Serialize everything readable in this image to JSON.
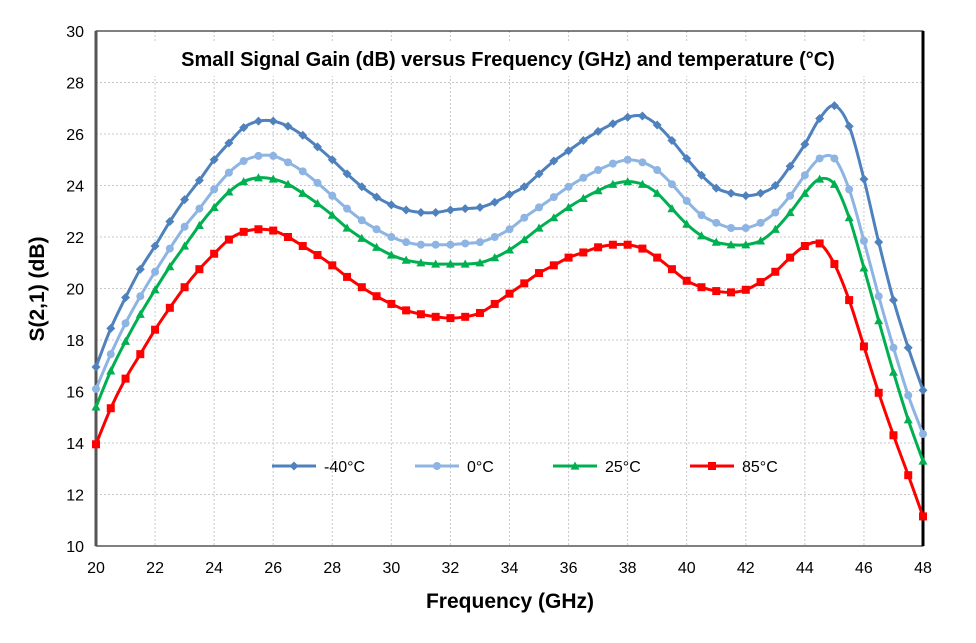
{
  "chart_data": {
    "type": "line",
    "title": "Small Signal Gain (dB) versus Frequency (GHz) and temperature (°C)",
    "xlabel": "Frequency (GHz)",
    "ylabel": "S(2,1) (dB)",
    "xlim": [
      20,
      48
    ],
    "ylim": [
      10,
      30
    ],
    "xticks": [
      20,
      22,
      24,
      26,
      28,
      30,
      32,
      34,
      36,
      38,
      40,
      42,
      44,
      46,
      48
    ],
    "yticks": [
      10,
      12,
      14,
      16,
      18,
      20,
      22,
      24,
      26,
      28,
      30
    ],
    "grid": true,
    "legend_position": "bottom-center",
    "x_start": 20,
    "x_step": 0.5,
    "series": [
      {
        "name": "-40°C",
        "color": "#4F81BD",
        "marker": "diamond",
        "values": [
          16.95,
          18.45,
          19.65,
          20.75,
          21.65,
          22.6,
          23.45,
          24.2,
          25.0,
          25.65,
          26.25,
          26.5,
          26.5,
          26.3,
          25.95,
          25.5,
          25.0,
          24.45,
          23.95,
          23.55,
          23.25,
          23.05,
          22.95,
          22.95,
          23.05,
          23.1,
          23.15,
          23.35,
          23.65,
          23.95,
          24.45,
          24.95,
          25.35,
          25.75,
          26.1,
          26.4,
          26.65,
          26.7,
          26.35,
          25.75,
          25.05,
          24.4,
          23.9,
          23.7,
          23.6,
          23.7,
          24.0,
          24.75,
          25.6,
          26.6,
          27.1,
          26.3,
          24.25,
          21.8,
          19.55,
          17.7,
          16.05
        ]
      },
      {
        "name": "0°C",
        "color": "#8DB4E2",
        "marker": "circle",
        "values": [
          16.1,
          17.45,
          18.65,
          19.7,
          20.65,
          21.55,
          22.4,
          23.1,
          23.85,
          24.5,
          24.95,
          25.15,
          25.15,
          24.9,
          24.55,
          24.1,
          23.6,
          23.1,
          22.65,
          22.3,
          22.0,
          21.8,
          21.7,
          21.7,
          21.7,
          21.75,
          21.8,
          22.0,
          22.3,
          22.75,
          23.15,
          23.55,
          23.95,
          24.3,
          24.6,
          24.85,
          25.0,
          24.9,
          24.6,
          24.05,
          23.4,
          22.85,
          22.55,
          22.35,
          22.35,
          22.55,
          22.95,
          23.6,
          24.4,
          25.05,
          25.05,
          23.85,
          21.85,
          19.7,
          17.7,
          15.85,
          14.35
        ]
      },
      {
        "name": "25°C",
        "color": "#00B050",
        "marker": "triangle",
        "values": [
          15.4,
          16.8,
          17.95,
          19.0,
          19.95,
          20.85,
          21.65,
          22.45,
          23.15,
          23.75,
          24.15,
          24.3,
          24.25,
          24.05,
          23.7,
          23.3,
          22.85,
          22.35,
          21.95,
          21.6,
          21.3,
          21.1,
          21.0,
          20.95,
          20.95,
          20.95,
          21.0,
          21.2,
          21.5,
          21.9,
          22.35,
          22.75,
          23.15,
          23.5,
          23.8,
          24.05,
          24.15,
          24.05,
          23.7,
          23.1,
          22.5,
          22.05,
          21.8,
          21.7,
          21.7,
          21.85,
          22.3,
          22.95,
          23.7,
          24.25,
          24.05,
          22.75,
          20.8,
          18.75,
          16.75,
          14.9,
          13.3
        ]
      },
      {
        "name": "85°C",
        "color": "#FF0000",
        "marker": "square",
        "values": [
          13.95,
          15.35,
          16.5,
          17.45,
          18.4,
          19.25,
          20.05,
          20.75,
          21.35,
          21.9,
          22.2,
          22.3,
          22.25,
          22.0,
          21.65,
          21.3,
          20.9,
          20.45,
          20.05,
          19.7,
          19.4,
          19.15,
          19.0,
          18.9,
          18.85,
          18.9,
          19.05,
          19.4,
          19.8,
          20.2,
          20.6,
          20.9,
          21.2,
          21.4,
          21.6,
          21.7,
          21.7,
          21.55,
          21.2,
          20.75,
          20.3,
          20.05,
          19.9,
          19.85,
          19.95,
          20.25,
          20.65,
          21.2,
          21.65,
          21.75,
          20.95,
          19.55,
          17.75,
          15.95,
          14.3,
          12.75,
          11.15
        ]
      }
    ]
  }
}
